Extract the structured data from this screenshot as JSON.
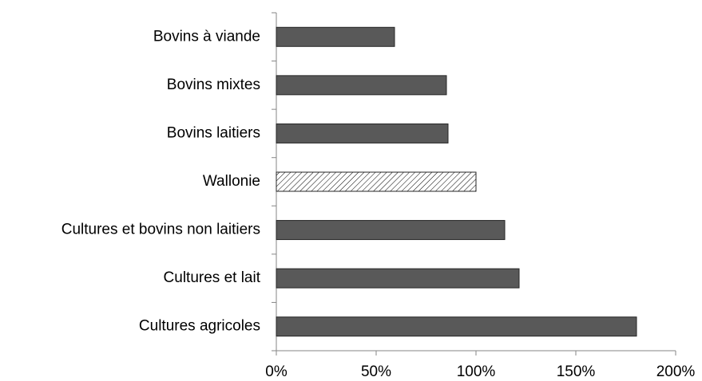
{
  "chart_data": {
    "type": "barh",
    "categories": [
      "Bovins à viande",
      "Bovins mixtes",
      "Bovins laitiers",
      "Wallonie",
      "Cultures et bovins non laitiers",
      "Cultures et lait",
      "Cultures agricoles"
    ],
    "values": [
      59.2,
      85.2,
      86,
      100,
      114.4,
      121.6,
      180.4
    ],
    "colors": [
      "#595959",
      "#595959",
      "#595959",
      "hatch",
      "#595959",
      "#595959",
      "#595959"
    ],
    "xlim": [
      0,
      200
    ],
    "xticks": [
      {
        "value": 0,
        "label": "0%"
      },
      {
        "value": 50,
        "label": "50%"
      },
      {
        "value": 100,
        "label": "100%"
      },
      {
        "value": 150,
        "label": "150%"
      },
      {
        "value": 200,
        "label": "200%"
      }
    ],
    "grid": false
  }
}
